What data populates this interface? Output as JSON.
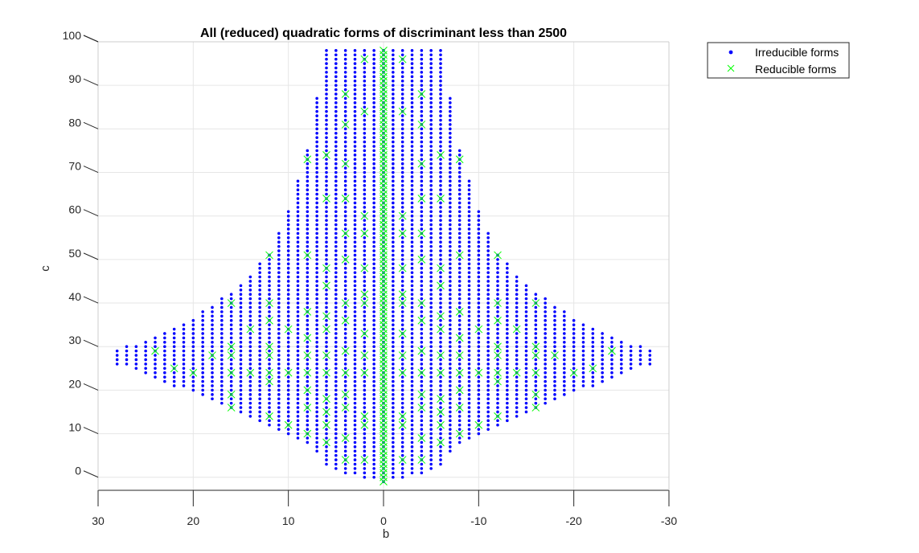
{
  "chart_data": {
    "type": "scatter",
    "title": "All (reduced) quadratic forms of discriminant less than 2500",
    "xlabel": "b",
    "ylabel": "c",
    "xlim": [
      30,
      -30
    ],
    "ylim": [
      -3,
      100
    ],
    "x_reversed": true,
    "x_ticks": [
      30,
      20,
      10,
      0,
      -10,
      -20,
      -30
    ],
    "x_tick_labels": [
      "30",
      "20",
      "10",
      "0",
      "-10",
      "-20",
      "-30"
    ],
    "y_ticks": [
      0,
      10,
      20,
      30,
      40,
      50,
      60,
      70,
      80,
      90,
      100
    ],
    "y_tick_labels": [
      "0",
      "10",
      "20",
      "30",
      "40",
      "50",
      "60",
      "70",
      "80",
      "90",
      "100"
    ],
    "grid": true,
    "legend_position": "outside-top-right",
    "series": [
      {
        "name": "Irreducible forms",
        "marker": "dot",
        "color": "#0000ff",
        "description": "Dense grid of points at integer b values with c ranging per b; envelope spans b in [-28, 28] at c≈25–28, narrowing to b in [-6, 6] at c=100.",
        "envelope": [
          {
            "b_abs": 0,
            "c_min": -1,
            "c_max": 98
          },
          {
            "b_abs": 2,
            "c_min": 0,
            "c_max": 98
          },
          {
            "b_abs": 4,
            "c_min": 1,
            "c_max": 98
          },
          {
            "b_abs": 6,
            "c_min": 3,
            "c_max": 98
          },
          {
            "b_abs": 8,
            "c_min": 8,
            "c_max": 75
          },
          {
            "b_abs": 10,
            "c_min": 10,
            "c_max": 61
          },
          {
            "b_abs": 12,
            "c_min": 12,
            "c_max": 51
          },
          {
            "b_abs": 14,
            "c_min": 14,
            "c_max": 46
          },
          {
            "b_abs": 16,
            "c_min": 16,
            "c_max": 42
          },
          {
            "b_abs": 18,
            "c_min": 18,
            "c_max": 39
          },
          {
            "b_abs": 20,
            "c_min": 20,
            "c_max": 36
          },
          {
            "b_abs": 22,
            "c_min": 21,
            "c_max": 34
          },
          {
            "b_abs": 24,
            "c_min": 23,
            "c_max": 32
          },
          {
            "b_abs": 26,
            "c_min": 25,
            "c_max": 30
          },
          {
            "b_abs": 28,
            "c_min": 26,
            "c_max": 29
          }
        ]
      },
      {
        "name": "Reducible forms",
        "marker": "x",
        "color": "#00ff00",
        "points": [
          [
            0,
            -1
          ],
          [
            0,
            0
          ],
          [
            0,
            1
          ],
          [
            0,
            2
          ],
          [
            0,
            3
          ],
          [
            0,
            4
          ],
          [
            0,
            5
          ],
          [
            0,
            6
          ],
          [
            0,
            7
          ],
          [
            0,
            8
          ],
          [
            0,
            9
          ],
          [
            0,
            10
          ],
          [
            0,
            11
          ],
          [
            0,
            12
          ],
          [
            0,
            13
          ],
          [
            0,
            14
          ],
          [
            0,
            15
          ],
          [
            0,
            16
          ],
          [
            0,
            17
          ],
          [
            0,
            18
          ],
          [
            0,
            19
          ],
          [
            0,
            20
          ],
          [
            0,
            21
          ],
          [
            0,
            22
          ],
          [
            0,
            23
          ],
          [
            0,
            24
          ],
          [
            0,
            25
          ],
          [
            0,
            26
          ],
          [
            0,
            27
          ],
          [
            0,
            28
          ],
          [
            0,
            29
          ],
          [
            0,
            30
          ],
          [
            0,
            31
          ],
          [
            0,
            32
          ],
          [
            0,
            33
          ],
          [
            0,
            34
          ],
          [
            0,
            35
          ],
          [
            0,
            36
          ],
          [
            0,
            37
          ],
          [
            0,
            38
          ],
          [
            0,
            39
          ],
          [
            0,
            40
          ],
          [
            0,
            41
          ],
          [
            0,
            42
          ],
          [
            0,
            43
          ],
          [
            0,
            44
          ],
          [
            0,
            45
          ],
          [
            0,
            46
          ],
          [
            0,
            47
          ],
          [
            0,
            48
          ],
          [
            0,
            49
          ],
          [
            0,
            50
          ],
          [
            0,
            51
          ],
          [
            0,
            52
          ],
          [
            0,
            53
          ],
          [
            0,
            54
          ],
          [
            0,
            55
          ],
          [
            0,
            56
          ],
          [
            0,
            57
          ],
          [
            0,
            58
          ],
          [
            0,
            59
          ],
          [
            0,
            60
          ],
          [
            0,
            61
          ],
          [
            0,
            62
          ],
          [
            0,
            63
          ],
          [
            0,
            64
          ],
          [
            0,
            65
          ],
          [
            0,
            66
          ],
          [
            0,
            67
          ],
          [
            0,
            68
          ],
          [
            0,
            69
          ],
          [
            0,
            70
          ],
          [
            0,
            71
          ],
          [
            0,
            72
          ],
          [
            0,
            73
          ],
          [
            0,
            74
          ],
          [
            0,
            75
          ],
          [
            0,
            76
          ],
          [
            0,
            77
          ],
          [
            0,
            78
          ],
          [
            0,
            79
          ],
          [
            0,
            80
          ],
          [
            0,
            81
          ],
          [
            0,
            82
          ],
          [
            0,
            83
          ],
          [
            0,
            84
          ],
          [
            0,
            85
          ],
          [
            0,
            86
          ],
          [
            0,
            87
          ],
          [
            0,
            88
          ],
          [
            0,
            89
          ],
          [
            0,
            90
          ],
          [
            0,
            91
          ],
          [
            0,
            92
          ],
          [
            0,
            93
          ],
          [
            0,
            94
          ],
          [
            0,
            95
          ],
          [
            0,
            96
          ],
          [
            0,
            97
          ],
          [
            0,
            98
          ],
          [
            2,
            96
          ],
          [
            -2,
            96
          ],
          [
            2,
            84
          ],
          [
            -2,
            84
          ],
          [
            4,
            88
          ],
          [
            -4,
            88
          ],
          [
            4,
            81
          ],
          [
            -4,
            81
          ],
          [
            8,
            73
          ],
          [
            -8,
            73
          ],
          [
            6,
            74
          ],
          [
            -6,
            74
          ],
          [
            4,
            72
          ],
          [
            -4,
            72
          ],
          [
            6,
            64
          ],
          [
            -6,
            64
          ],
          [
            4,
            64
          ],
          [
            -4,
            64
          ],
          [
            2,
            60
          ],
          [
            -2,
            60
          ],
          [
            4,
            56
          ],
          [
            -4,
            56
          ],
          [
            2,
            56
          ],
          [
            -2,
            56
          ],
          [
            12,
            51
          ],
          [
            -12,
            51
          ],
          [
            8,
            51
          ],
          [
            -8,
            51
          ],
          [
            4,
            50
          ],
          [
            -4,
            50
          ],
          [
            6,
            48
          ],
          [
            -6,
            48
          ],
          [
            2,
            48
          ],
          [
            -2,
            48
          ],
          [
            6,
            44
          ],
          [
            -6,
            44
          ],
          [
            2,
            42
          ],
          [
            -2,
            42
          ],
          [
            16,
            40
          ],
          [
            -16,
            40
          ],
          [
            12,
            40
          ],
          [
            -12,
            40
          ],
          [
            4,
            40
          ],
          [
            -4,
            40
          ],
          [
            2,
            40
          ],
          [
            -2,
            40
          ],
          [
            8,
            38
          ],
          [
            -8,
            38
          ],
          [
            6,
            37
          ],
          [
            -6,
            37
          ],
          [
            12,
            36
          ],
          [
            -12,
            36
          ],
          [
            4,
            36
          ],
          [
            -4,
            36
          ],
          [
            14,
            34
          ],
          [
            -14,
            34
          ],
          [
            10,
            34
          ],
          [
            -10,
            34
          ],
          [
            6,
            34
          ],
          [
            -6,
            34
          ],
          [
            2,
            33
          ],
          [
            -2,
            33
          ],
          [
            8,
            32
          ],
          [
            -8,
            32
          ],
          [
            12,
            30
          ],
          [
            -12,
            30
          ],
          [
            16,
            30
          ],
          [
            -16,
            30
          ],
          [
            24,
            29
          ],
          [
            -24,
            29
          ],
          [
            4,
            29
          ],
          [
            -4,
            29
          ],
          [
            18,
            28
          ],
          [
            -18,
            28
          ],
          [
            16,
            28
          ],
          [
            -16,
            28
          ],
          [
            12,
            28
          ],
          [
            -12,
            28
          ],
          [
            8,
            28
          ],
          [
            -8,
            28
          ],
          [
            6,
            28
          ],
          [
            -6,
            28
          ],
          [
            2,
            28
          ],
          [
            -2,
            28
          ],
          [
            22,
            25
          ],
          [
            -22,
            25
          ],
          [
            20,
            24
          ],
          [
            -20,
            24
          ],
          [
            16,
            24
          ],
          [
            -16,
            24
          ],
          [
            14,
            24
          ],
          [
            -14,
            24
          ],
          [
            12,
            24
          ],
          [
            -12,
            24
          ],
          [
            10,
            24
          ],
          [
            -10,
            24
          ],
          [
            8,
            24
          ],
          [
            -8,
            24
          ],
          [
            6,
            24
          ],
          [
            -6,
            24
          ],
          [
            4,
            24
          ],
          [
            -4,
            24
          ],
          [
            2,
            24
          ],
          [
            -2,
            24
          ],
          [
            12,
            22
          ],
          [
            -12,
            22
          ],
          [
            8,
            20
          ],
          [
            -8,
            20
          ],
          [
            16,
            19
          ],
          [
            -16,
            19
          ],
          [
            4,
            19
          ],
          [
            -4,
            19
          ],
          [
            6,
            18
          ],
          [
            -6,
            18
          ],
          [
            16,
            16
          ],
          [
            -16,
            16
          ],
          [
            8,
            16
          ],
          [
            -8,
            16
          ],
          [
            4,
            16
          ],
          [
            -4,
            16
          ],
          [
            6,
            15
          ],
          [
            -6,
            15
          ],
          [
            2,
            14
          ],
          [
            -2,
            14
          ],
          [
            12,
            14
          ],
          [
            -12,
            14
          ],
          [
            10,
            12
          ],
          [
            -10,
            12
          ],
          [
            6,
            12
          ],
          [
            -6,
            12
          ],
          [
            2,
            12
          ],
          [
            -2,
            12
          ],
          [
            8,
            10
          ],
          [
            -8,
            10
          ],
          [
            4,
            9
          ],
          [
            -4,
            9
          ],
          [
            6,
            8
          ],
          [
            -6,
            8
          ],
          [
            4,
            4
          ],
          [
            -4,
            4
          ],
          [
            2,
            4
          ],
          [
            -2,
            4
          ]
        ]
      }
    ]
  }
}
